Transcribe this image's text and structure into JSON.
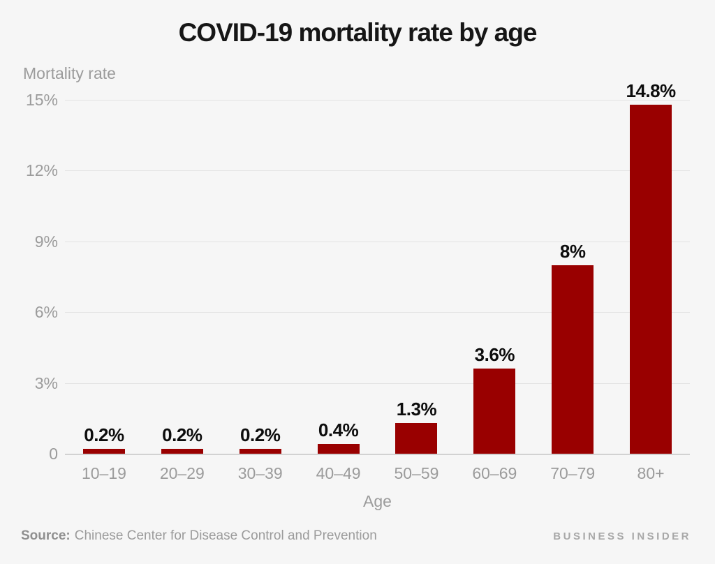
{
  "title": "COVID-19 mortality rate by age",
  "y_axis_title": "Mortality rate",
  "x_axis_title": "Age",
  "footer": {
    "source_label": "Source:",
    "source_text": "Chinese Center for Disease Control and Prevention",
    "brand": "BUSINESS INSIDER"
  },
  "colors": {
    "bar": "#990000",
    "background": "#f6f6f6",
    "grid": "#e3e3e3",
    "baseline": "#d2d2d2",
    "axis_text": "#9b9b9b",
    "value_label_text": "#0d0d0d",
    "title_text": "#161616"
  },
  "chart_data": {
    "type": "bar",
    "title": "COVID-19 mortality rate by age",
    "xlabel": "Age",
    "ylabel": "Mortality rate",
    "categories": [
      "10–19",
      "20–29",
      "30–39",
      "40–49",
      "50–59",
      "60–69",
      "70–79",
      "80+"
    ],
    "values": [
      0.2,
      0.2,
      0.2,
      0.4,
      1.3,
      3.6,
      8,
      14.8
    ],
    "value_labels": [
      "0.2%",
      "0.2%",
      "0.2%",
      "0.4%",
      "1.3%",
      "3.6%",
      "8%",
      "14.8%"
    ],
    "ylim": [
      0,
      15
    ],
    "yticks": [
      0,
      3,
      6,
      9,
      12,
      15
    ],
    "ytick_labels": [
      "0",
      "3%",
      "6%",
      "9%",
      "12%",
      "15%"
    ],
    "grid": true,
    "legend": false
  }
}
